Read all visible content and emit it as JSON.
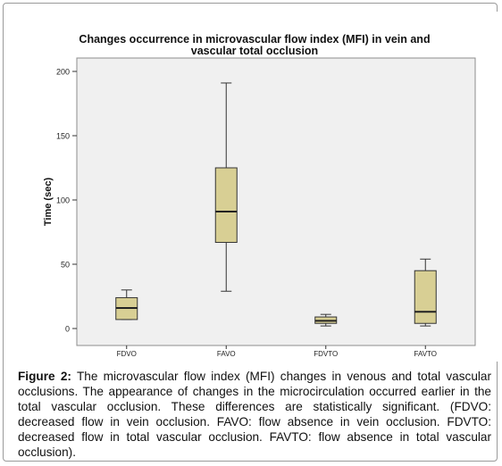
{
  "chart_data": {
    "type": "boxplot",
    "title_lines": [
      "Changes occurrence in microvascular flow index (MFI) in vein and",
      "vascular total occlusion"
    ],
    "xlabel": "",
    "ylabel": "Time (sec)",
    "ylim": [
      0,
      200
    ],
    "yticks": [
      0,
      50,
      100,
      150,
      200
    ],
    "categories": [
      "FDVO",
      "FAVO",
      "FDVTO",
      "FAVTO"
    ],
    "boxes": [
      {
        "category": "FDVO",
        "min": 7,
        "q1": 7,
        "median": 16,
        "q3": 24,
        "max": 30
      },
      {
        "category": "FAVO",
        "min": 29,
        "q1": 67,
        "median": 91,
        "q3": 125,
        "max": 191
      },
      {
        "category": "FDVTO",
        "min": 2,
        "q1": 4,
        "median": 6,
        "q3": 9,
        "max": 11
      },
      {
        "category": "FAVTO",
        "min": 2,
        "q1": 4,
        "median": 13,
        "q3": 45,
        "max": 54
      }
    ],
    "grid": false,
    "box_color": "#d8cf94",
    "plot_background": "#f0f0f0"
  },
  "caption": {
    "label": "Figure 2:",
    "text": " The microvascular flow index (MFI) changes in venous and total vascular occlusions. The appearance of changes in the microcirculation occurred earlier in the total vascular occlusion. These differences are statistically significant. (FDVO: decreased flow in vein occlusion. FAVO: flow absence in vein occlusion. FDVTO: decreased flow in total vascular occlusion. FAVTO: flow absence in total vascular occlusion)."
  }
}
